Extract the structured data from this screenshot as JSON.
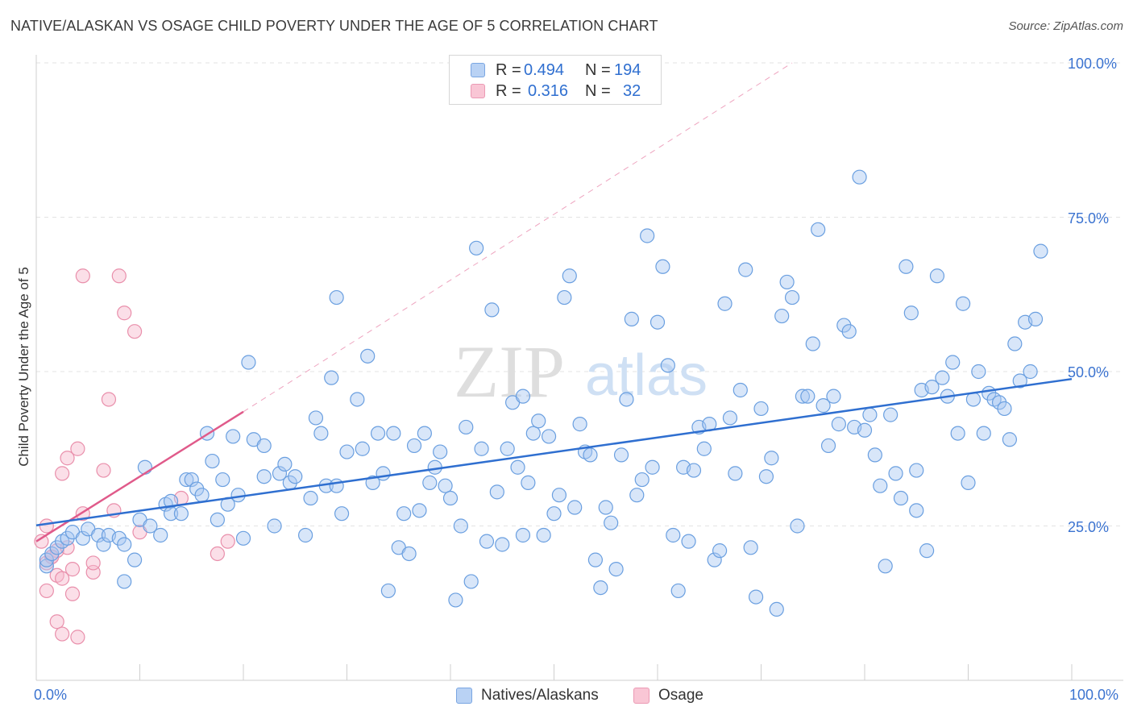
{
  "title": "NATIVE/ALASKAN VS OSAGE CHILD POVERTY UNDER THE AGE OF 5 CORRELATION CHART",
  "source": "Source: ZipAtlas.com",
  "watermark": {
    "zip": "ZIP",
    "atlas": "atlas"
  },
  "legend": {
    "row1": {
      "r_label": "R =",
      "r_value": "0.494",
      "n_label": "N =",
      "n_value": "194"
    },
    "row2": {
      "r_label": "R =",
      "r_value": "0.316",
      "n_label": "N =",
      "n_value": "32"
    }
  },
  "colors": {
    "natives_fill": "#a9c8f2",
    "natives_stroke": "#6a9fe0",
    "natives_line": "#2f6fd0",
    "osage_fill": "#f7b9cb",
    "osage_stroke": "#e98fab",
    "osage_line": "#e05a8a",
    "tick_text": "#3b73d0"
  },
  "chart_data": {
    "type": "scatter",
    "title": "NATIVE/ALASKAN VS OSAGE CHILD POVERTY UNDER THE AGE OF 5 CORRELATION CHART",
    "xlabel": "",
    "ylabel": "Child Poverty Under the Age of 5",
    "xlim": [
      0,
      100
    ],
    "ylim": [
      0,
      100
    ],
    "x_tick_labels": [
      "0.0%",
      "100.0%"
    ],
    "y_tick_labels": [
      "25.0%",
      "50.0%",
      "75.0%",
      "100.0%"
    ],
    "y_ticks": [
      25,
      50,
      75,
      100
    ],
    "grid": true,
    "legend_position": "top-center",
    "series": [
      {
        "name": "Natives/Alaskans",
        "r": 0.494,
        "n": 194,
        "trend": {
          "x": [
            0,
            100
          ],
          "y": [
            25.1,
            48.8
          ]
        },
        "points": [
          [
            1,
            18.5
          ],
          [
            1,
            19.5
          ],
          [
            1.5,
            20.5
          ],
          [
            2,
            21.5
          ],
          [
            2.5,
            22.5
          ],
          [
            3,
            23
          ],
          [
            3.5,
            24
          ],
          [
            4.5,
            23
          ],
          [
            5,
            24.5
          ],
          [
            6,
            23.5
          ],
          [
            6.5,
            22
          ],
          [
            7,
            23.5
          ],
          [
            8,
            23
          ],
          [
            8.5,
            22
          ],
          [
            8.5,
            16
          ],
          [
            9.5,
            19.5
          ],
          [
            10,
            26
          ],
          [
            10.5,
            34.5
          ],
          [
            11,
            25
          ],
          [
            12,
            23.5
          ],
          [
            12.5,
            28.5
          ],
          [
            13,
            29
          ],
          [
            13,
            27
          ],
          [
            14,
            27
          ],
          [
            14.5,
            32.5
          ],
          [
            15,
            32.5
          ],
          [
            15.5,
            31
          ],
          [
            16,
            30
          ],
          [
            16.5,
            40
          ],
          [
            17,
            35.5
          ],
          [
            17.5,
            26
          ],
          [
            18,
            32.5
          ],
          [
            18.5,
            28.5
          ],
          [
            19,
            39.5
          ],
          [
            19.5,
            30
          ],
          [
            20,
            23
          ],
          [
            20.5,
            51.5
          ],
          [
            21,
            39
          ],
          [
            22,
            38
          ],
          [
            22,
            33
          ],
          [
            23,
            25
          ],
          [
            23.5,
            33.5
          ],
          [
            24,
            35
          ],
          [
            24.5,
            32
          ],
          [
            25,
            33
          ],
          [
            26,
            23.5
          ],
          [
            26.5,
            29.5
          ],
          [
            27,
            42.5
          ],
          [
            27.5,
            40
          ],
          [
            28,
            31.5
          ],
          [
            28.5,
            49
          ],
          [
            29,
            62
          ],
          [
            29.5,
            27
          ],
          [
            30,
            37
          ],
          [
            31,
            45.5
          ],
          [
            31.5,
            37.5
          ],
          [
            32,
            52.5
          ],
          [
            32.5,
            32
          ],
          [
            33,
            40
          ],
          [
            33.5,
            33.5
          ],
          [
            34,
            14.5
          ],
          [
            34.5,
            40
          ],
          [
            35,
            21.5
          ],
          [
            35.5,
            27
          ],
          [
            36,
            20.5
          ],
          [
            36.5,
            38
          ],
          [
            37,
            27.5
          ],
          [
            37.5,
            40
          ],
          [
            38,
            32
          ],
          [
            38.5,
            34.5
          ],
          [
            39,
            37
          ],
          [
            39.5,
            31.5
          ],
          [
            40,
            29.5
          ],
          [
            40.5,
            13
          ],
          [
            41,
            25
          ],
          [
            41.5,
            41
          ],
          [
            42,
            16
          ],
          [
            42.5,
            70
          ],
          [
            43,
            37.5
          ],
          [
            43.5,
            22.5
          ],
          [
            44,
            60
          ],
          [
            44.5,
            30.5
          ],
          [
            45,
            22
          ],
          [
            45.5,
            37.5
          ],
          [
            46,
            45
          ],
          [
            46.5,
            34.5
          ],
          [
            47,
            46
          ],
          [
            47.5,
            32
          ],
          [
            48,
            40
          ],
          [
            48.5,
            42
          ],
          [
            49,
            23.5
          ],
          [
            49.5,
            39.5
          ],
          [
            50,
            27
          ],
          [
            50.5,
            30
          ],
          [
            51,
            62
          ],
          [
            51.5,
            65.5
          ],
          [
            52,
            28
          ],
          [
            52.5,
            41.5
          ],
          [
            53,
            37
          ],
          [
            53.5,
            36.5
          ],
          [
            54,
            19.5
          ],
          [
            54.5,
            15
          ],
          [
            55,
            28
          ],
          [
            55.5,
            25.5
          ],
          [
            56,
            18
          ],
          [
            56.5,
            36.5
          ],
          [
            57,
            45.5
          ],
          [
            57.5,
            58.5
          ],
          [
            58,
            30
          ],
          [
            58.5,
            32.5
          ],
          [
            59,
            72
          ],
          [
            59.5,
            34.5
          ],
          [
            60,
            58
          ],
          [
            60.5,
            67
          ],
          [
            61,
            51
          ],
          [
            61.5,
            23.5
          ],
          [
            62,
            14.5
          ],
          [
            62.5,
            34.5
          ],
          [
            63,
            22.5
          ],
          [
            63.5,
            34
          ],
          [
            64,
            41
          ],
          [
            64.5,
            37.5
          ],
          [
            65,
            41.5
          ],
          [
            65.5,
            19.5
          ],
          [
            66,
            21
          ],
          [
            66.5,
            61
          ],
          [
            67,
            42.5
          ],
          [
            67.5,
            33.5
          ],
          [
            68,
            47
          ],
          [
            68.5,
            66.5
          ],
          [
            69,
            21.5
          ],
          [
            69.5,
            13.5
          ],
          [
            70,
            44
          ],
          [
            70.5,
            33
          ],
          [
            71,
            36
          ],
          [
            71.5,
            11.5
          ],
          [
            72,
            59
          ],
          [
            72.5,
            64.5
          ],
          [
            73,
            62
          ],
          [
            73.5,
            25
          ],
          [
            74,
            46
          ],
          [
            74.5,
            46
          ],
          [
            75,
            54.5
          ],
          [
            75.5,
            73
          ],
          [
            76,
            44.5
          ],
          [
            76.5,
            38
          ],
          [
            77,
            46
          ],
          [
            77.5,
            41.5
          ],
          [
            78,
            57.5
          ],
          [
            78.5,
            56.5
          ],
          [
            79,
            41
          ],
          [
            79.5,
            81.5
          ],
          [
            80,
            40.5
          ],
          [
            80.5,
            43
          ],
          [
            81,
            36.5
          ],
          [
            81.5,
            31.5
          ],
          [
            82,
            18.5
          ],
          [
            82.5,
            43
          ],
          [
            83,
            33.5
          ],
          [
            83.5,
            29.5
          ],
          [
            84,
            67
          ],
          [
            84.5,
            59.5
          ],
          [
            85,
            27.5
          ],
          [
            85.5,
            47
          ],
          [
            86,
            21
          ],
          [
            86.5,
            47.5
          ],
          [
            87,
            65.5
          ],
          [
            87.5,
            49
          ],
          [
            88,
            46
          ],
          [
            88.5,
            51.5
          ],
          [
            89,
            40
          ],
          [
            89.5,
            61
          ],
          [
            90,
            32
          ],
          [
            90.5,
            45.5
          ],
          [
            91,
            50
          ],
          [
            91.5,
            40
          ],
          [
            92,
            46.5
          ],
          [
            92.5,
            45.5
          ],
          [
            93,
            45
          ],
          [
            93.5,
            44
          ],
          [
            94,
            39
          ],
          [
            94.5,
            54.5
          ],
          [
            95,
            48.5
          ],
          [
            95.5,
            58
          ],
          [
            96,
            50
          ],
          [
            96.5,
            58.5
          ],
          [
            97,
            69.5
          ],
          [
            85,
            34
          ],
          [
            47,
            23.5
          ],
          [
            29,
            31.5
          ]
        ]
      },
      {
        "name": "Osage",
        "r": 0.316,
        "n": 32,
        "trend": {
          "x": [
            0,
            20
          ],
          "y": [
            22.5,
            43.5
          ]
        },
        "trend_ext": {
          "x": [
            20,
            73
          ],
          "y": [
            43.5,
            100
          ]
        },
        "points": [
          [
            0.5,
            22.5
          ],
          [
            1,
            25
          ],
          [
            1,
            14.5
          ],
          [
            1,
            19
          ],
          [
            1.5,
            20
          ],
          [
            2,
            21
          ],
          [
            2,
            9.5
          ],
          [
            2,
            17
          ],
          [
            2.5,
            7.5
          ],
          [
            2.5,
            33.5
          ],
          [
            2.5,
            16.5
          ],
          [
            3,
            36
          ],
          [
            3,
            21.5
          ],
          [
            3.5,
            18
          ],
          [
            3.5,
            14
          ],
          [
            4,
            37.5
          ],
          [
            4,
            7
          ],
          [
            4.5,
            65.5
          ],
          [
            4.5,
            27
          ],
          [
            5.5,
            17.5
          ],
          [
            5.5,
            19
          ],
          [
            6.5,
            34
          ],
          [
            7,
            45.5
          ],
          [
            7.5,
            27.5
          ],
          [
            8,
            65.5
          ],
          [
            8.5,
            59.5
          ],
          [
            9.5,
            56.5
          ],
          [
            10,
            24
          ],
          [
            14,
            29.5
          ],
          [
            17.5,
            20.5
          ],
          [
            18.5,
            22.5
          ],
          [
            1.5,
            20
          ]
        ]
      }
    ]
  }
}
